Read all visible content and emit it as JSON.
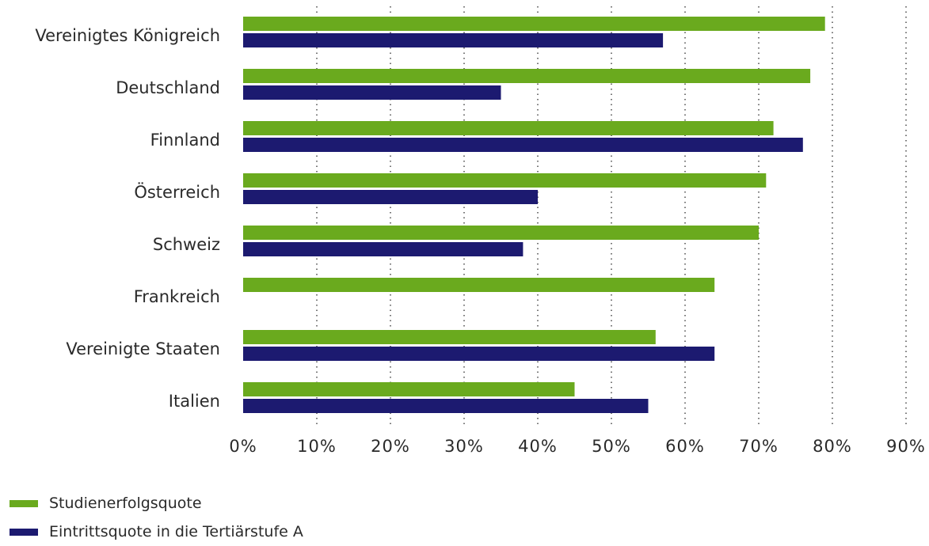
{
  "chart_data": {
    "type": "bar",
    "orientation": "horizontal",
    "categories": [
      "Vereinigtes Königreich",
      "Deutschland",
      "Finnland",
      "Österreich",
      "Schweiz",
      "Frankreich",
      "Vereinigte Staaten",
      "Italien"
    ],
    "series": [
      {
        "name": "Studienerfolgsquote",
        "color": "#6aaa1e",
        "values": [
          79,
          77,
          72,
          71,
          70,
          64,
          56,
          45
        ]
      },
      {
        "name": "Eintrittsquote in die Tertiärstufe A",
        "color": "#1c1a70",
        "values": [
          57,
          35,
          76,
          40,
          38,
          null,
          64,
          55
        ]
      }
    ],
    "xlim": [
      0,
      90
    ],
    "xticks": [
      "0%",
      "10%",
      "20%",
      "30%",
      "40%",
      "50%",
      "60%",
      "70%",
      "80%",
      "90%"
    ],
    "grid": "vertical-dotted",
    "legend_position": "bottom-left"
  }
}
